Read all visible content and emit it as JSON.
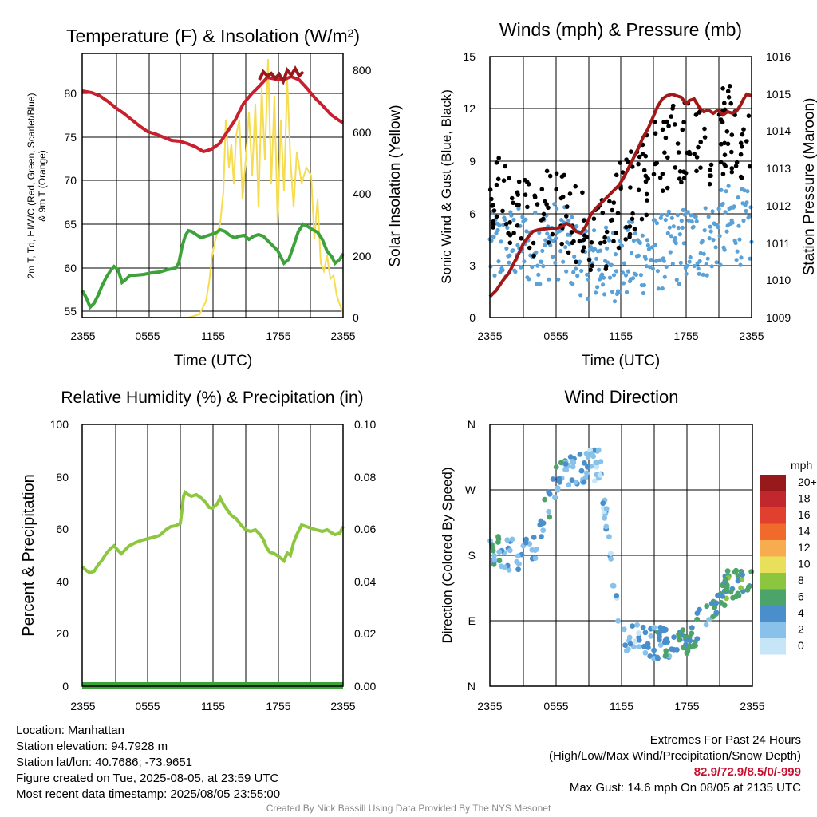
{
  "ticks_x": [
    "2355",
    "0555",
    "1155",
    "1755",
    "2355"
  ],
  "panels": {
    "temp": {
      "title": "Temperature (F) & Insolation (W/m²)",
      "ylabel_left_1": "2m T, Td, HI/WC (Red, Green, Scarlet/Blue)",
      "ylabel_left_2": "& 9m T (Orange)",
      "ylabel_right": "Solar Insolation (Yellow)",
      "xlabel": "Time (UTC)",
      "yticks_left": [
        "55",
        "60",
        "65",
        "70",
        "75",
        "80"
      ],
      "yticks_right": [
        "0",
        "200",
        "400",
        "600",
        "800"
      ]
    },
    "wind": {
      "title": "Winds (mph) & Pressure (mb)",
      "ylabel_left": "Sonic Wind & Gust (Blue, Black)",
      "ylabel_right": "Station Pressure (Maroon)",
      "xlabel": "Time (UTC)",
      "yticks_left": [
        "0",
        "3",
        "6",
        "9",
        "12",
        "15"
      ],
      "yticks_right": [
        "1009",
        "1010",
        "1011",
        "1012",
        "1013",
        "1014",
        "1015",
        "1016"
      ]
    },
    "rh": {
      "title": "Relative Humidity (%) & Precipitation (in)",
      "ylabel_left": "Percent & Precipitation",
      "yticks_left": [
        "0",
        "20",
        "40",
        "60",
        "80",
        "100"
      ],
      "yticks_right": [
        "0.00",
        "0.02",
        "0.04",
        "0.06",
        "0.08",
        "0.10"
      ]
    },
    "dir": {
      "title": "Wind Direction",
      "ylabel_left": "Direction (Colored By Speed)",
      "yticks_left": [
        "N",
        "E",
        "S",
        "W",
        "N"
      ],
      "legend_unit": "mph",
      "legend_labels": [
        "0",
        "2",
        "4",
        "6",
        "8",
        "10",
        "12",
        "14",
        "16",
        "18",
        "20+"
      ],
      "legend_colors": [
        "#c6e6f8",
        "#88c2ea",
        "#4a8fcb",
        "#4da46a",
        "#8cc63f",
        "#e8df5a",
        "#f7ac4f",
        "#f06a2b",
        "#e2402e",
        "#c1272d",
        "#98191c"
      ]
    }
  },
  "colors": {
    "temperature": "#c8202c",
    "dewpoint": "#3da23a",
    "insolation": "#f5dc50",
    "wind": "#5aa1d8",
    "gust": "#000000",
    "pressure": "#a01818",
    "rh": "#8dc63f",
    "precip": "#3da23a"
  },
  "footer": {
    "location": "Location: Manhattan",
    "elevation": "Station elevation: 94.7928 m",
    "latlon": "Station lat/lon: 40.7686; -73.9651",
    "created": "Figure created on Tue, 2025-08-05, at 23:59 UTC",
    "recent": "Most recent data timestamp: 2025/08/05 23:55:00",
    "extremes_title": "Extremes For Past 24 Hours",
    "extremes_desc": "(High/Low/Max Wind/Precipitation/Snow Depth)",
    "extremes_values": "82.9/72.9/8.5/0/-999",
    "max_gust": "Max Gust: 14.6 mph On 08/05 at 2135 UTC"
  },
  "credit": "Created By Nick Bassill Using Data Provided By The NYS Mesonet",
  "chart_data": [
    {
      "type": "line",
      "title": "Temperature (F) & Insolation (W/m²)",
      "xlabel": "Time (UTC)",
      "x": [
        "2355",
        "0155",
        "0355",
        "0555",
        "0755",
        "0955",
        "1155",
        "1355",
        "1555",
        "1755",
        "1955",
        "2155",
        "2355"
      ],
      "ylim": [
        54,
        84
      ],
      "y2lim": [
        0,
        840
      ],
      "series": [
        {
          "name": "2m T",
          "axis": "left",
          "values": [
            80.2,
            78.0,
            76.4,
            74.8,
            74.4,
            73.2,
            75.0,
            78.0,
            80.2,
            81.5,
            81.5,
            79.5,
            76.3
          ]
        },
        {
          "name": "Td",
          "axis": "left",
          "values": [
            57.2,
            58.5,
            59.5,
            59.3,
            60.5,
            64.2,
            63.2,
            64.0,
            62.8,
            61.0,
            62.5,
            64.8,
            62.0
          ]
        },
        {
          "name": "Solar Insolation",
          "axis": "right",
          "values": [
            0,
            0,
            0,
            0,
            0,
            5,
            150,
            520,
            640,
            560,
            600,
            180,
            20
          ]
        }
      ]
    },
    {
      "type": "line",
      "title": "Winds (mph) & Pressure (mb)",
      "xlabel": "Time (UTC)",
      "x": [
        "2355",
        "0155",
        "0355",
        "0555",
        "0755",
        "0955",
        "1155",
        "1355",
        "1555",
        "1755",
        "1955",
        "2155",
        "2355"
      ],
      "ylim": [
        0,
        15
      ],
      "y2lim": [
        1009,
        1016
      ],
      "series": [
        {
          "name": "Sonic Wind",
          "axis": "left",
          "values": [
            3.8,
            4.2,
            4.0,
            4.5,
            3.6,
            3.0,
            3.2,
            3.5,
            3.8,
            4.2,
            4.5,
            5.5,
            5.0
          ]
        },
        {
          "name": "Gust",
          "axis": "left",
          "values": [
            7.5,
            6.5,
            6.0,
            7.0,
            5.0,
            4.5,
            6.5,
            8.0,
            9.5,
            10.5,
            10.0,
            11.0,
            9.0
          ]
        },
        {
          "name": "Station Pressure",
          "axis": "right",
          "values": [
            1009.6,
            1010.4,
            1011.3,
            1011.5,
            1011.5,
            1012.0,
            1012.6,
            1013.4,
            1014.3,
            1015.0,
            1014.6,
            1014.6,
            1015.0
          ]
        }
      ]
    },
    {
      "type": "line",
      "title": "Relative Humidity (%) & Precipitation (in)",
      "x": [
        "2355",
        "0155",
        "0355",
        "0555",
        "0755",
        "0955",
        "1155",
        "1355",
        "1555",
        "1755",
        "1955",
        "2155",
        "2355"
      ],
      "ylim": [
        0,
        100
      ],
      "y2lim": [
        0,
        0.1
      ],
      "series": [
        {
          "name": "RH",
          "axis": "left",
          "values": [
            45,
            45,
            53,
            55,
            57,
            61,
            72,
            68,
            60,
            49,
            58,
            60,
            59
          ]
        },
        {
          "name": "Precipitation",
          "axis": "right",
          "values": [
            0,
            0,
            0,
            0,
            0,
            0,
            0,
            0,
            0,
            0,
            0,
            0,
            0
          ]
        }
      ]
    },
    {
      "type": "scatter",
      "title": "Wind Direction",
      "ylabel": "Direction (Colored By Speed)",
      "x": [
        "2355",
        "0155",
        "0355",
        "0555",
        "0755",
        "0955",
        "1155",
        "1355",
        "1555",
        "1755",
        "1955",
        "2155",
        "2355"
      ],
      "ylim": [
        0,
        360
      ],
      "series": [
        {
          "name": "Direction",
          "values": [
            190,
            180,
            190,
            280,
            300,
            305,
            70,
            60,
            60,
            55,
            110,
            140,
            145
          ]
        },
        {
          "name": "Speed",
          "values": [
            4,
            3,
            3,
            4,
            3,
            2,
            2,
            3,
            4,
            6,
            4,
            6,
            5
          ]
        }
      ]
    }
  ]
}
